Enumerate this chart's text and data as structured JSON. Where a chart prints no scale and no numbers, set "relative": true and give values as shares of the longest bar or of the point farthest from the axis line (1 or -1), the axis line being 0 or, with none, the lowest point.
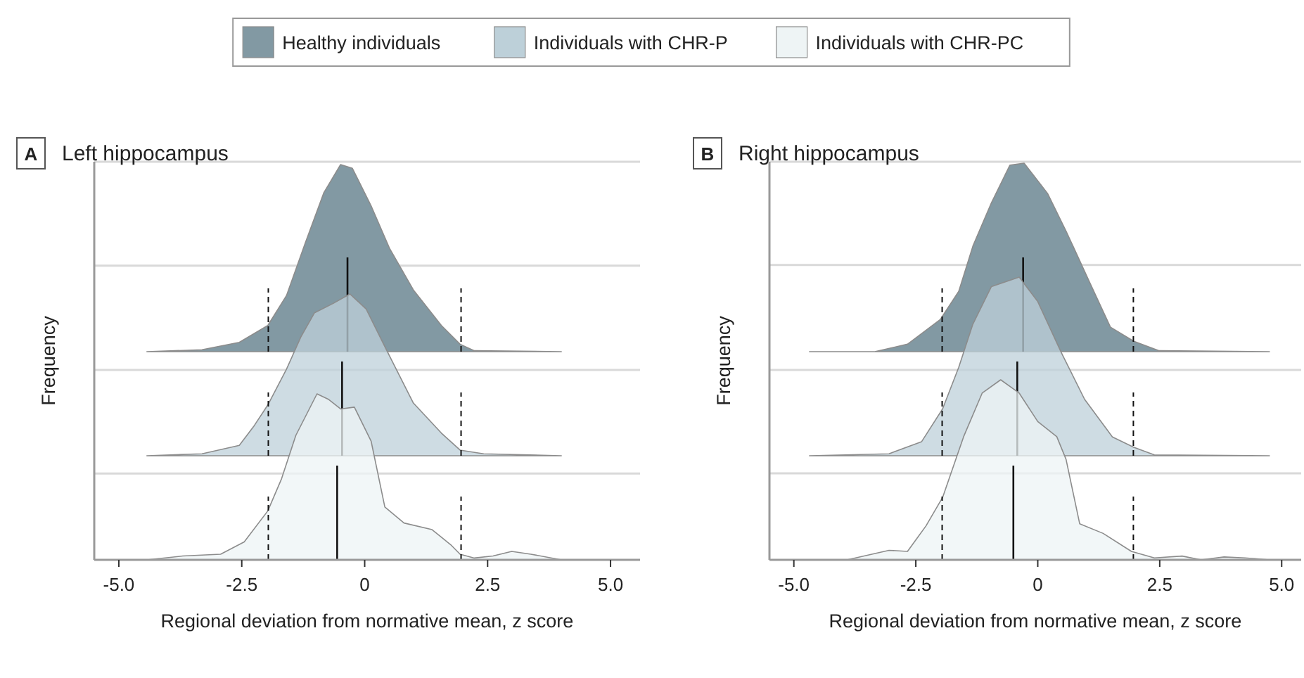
{
  "chart_data": [
    {
      "type": "area",
      "title": "Left hippocampus",
      "annotations": [
        "A"
      ],
      "relative": true,
      "legend": "top",
      "tick_labels": false,
      "xlim": [
        -5.5,
        5.6
      ],
      "ref_lines": [
        {
          "axis": "x",
          "value": -1.96,
          "line_style": "dashed"
        },
        {
          "axis": "x",
          "value": 1.96,
          "line_style": "dashed"
        },
        {
          "axis": "x",
          "value": -0.35,
          "line_style": "solid"
        },
        {
          "axis": "y",
          "value": 0.46,
          "color": "#d9d9d9",
          "line_style": "solid"
        }
      ],
      "series": [
        {
          "name": "Healthy individuals",
          "color": "#8299a3",
          "x": [
            -4.43,
            -3.31,
            -2.55,
            -1.97,
            -1.59,
            -1.21,
            -0.83,
            -0.49,
            -0.25,
            0.13,
            0.51,
            0.99,
            1.56,
            1.94,
            2.23,
            4.0
          ],
          "values": [
            0,
            0.01,
            0.05,
            0.14,
            0.3,
            0.58,
            0.85,
            1.0,
            0.98,
            0.78,
            0.55,
            0.33,
            0.14,
            0.04,
            0.005,
            0
          ]
        }
      ]
    },
    {
      "type": "area",
      "ylabel": "Frequency",
      "relative": true,
      "legend": "top",
      "tick_labels": false,
      "xlim": [
        -5.5,
        5.6
      ],
      "ref_lines": [
        {
          "axis": "x",
          "value": -1.96,
          "line_style": "dashed"
        },
        {
          "axis": "x",
          "value": 1.96,
          "line_style": "dashed"
        },
        {
          "axis": "x",
          "value": -0.46,
          "line_style": "solid"
        },
        {
          "axis": "y",
          "value": 0.53,
          "color": "#d9d9d9",
          "line_style": "solid"
        }
      ],
      "series": [
        {
          "name": "Individuals with CHR-P",
          "color": "#bdd0d9",
          "x": [
            -4.43,
            -3.31,
            -2.55,
            -2.26,
            -1.97,
            -1.59,
            -1.3,
            -1.02,
            -0.64,
            -0.3,
            0.03,
            0.41,
            0.99,
            1.56,
            1.94,
            2.42,
            4.0
          ],
          "values": [
            0,
            0.012,
            0.064,
            0.18,
            0.314,
            0.535,
            0.733,
            0.884,
            0.942,
            1.0,
            0.907,
            0.674,
            0.326,
            0.14,
            0.035,
            0.012,
            0
          ]
        }
      ]
    },
    {
      "type": "area",
      "xlabel": "Regional deviation from normative mean, z score",
      "relative": true,
      "legend": "top",
      "tick_labels": "x",
      "xlim": [
        -5.5,
        5.6
      ],
      "xticks": [
        {
          "value": -5,
          "label": "-5.0"
        },
        {
          "value": -2.5,
          "label": "-2.5"
        },
        {
          "value": 0,
          "label": "0"
        },
        {
          "value": 2.5,
          "label": "2.5"
        },
        {
          "value": 5,
          "label": "5.0"
        }
      ],
      "ref_lines": [
        {
          "axis": "x",
          "value": -1.96,
          "line_style": "dashed"
        },
        {
          "axis": "x",
          "value": 1.96,
          "line_style": "dashed"
        },
        {
          "axis": "x",
          "value": -0.56,
          "line_style": "solid"
        },
        {
          "axis": "y",
          "value": 0.52,
          "color": "#d9d9d9",
          "line_style": "solid"
        }
      ],
      "series": [
        {
          "name": "Individuals with CHR-PC",
          "color": "#eef4f5",
          "x": [
            -4.43,
            -3.7,
            -2.93,
            -2.45,
            -1.97,
            -1.69,
            -1.4,
            -0.97,
            -0.73,
            -0.49,
            -0.21,
            0.13,
            0.41,
            0.8,
            1.37,
            1.75,
            1.94,
            2.23,
            2.61,
            2.99,
            3.38,
            4.0
          ],
          "values": [
            0,
            0.023,
            0.034,
            0.108,
            0.295,
            0.489,
            0.75,
            1.0,
            0.966,
            0.909,
            0.92,
            0.716,
            0.318,
            0.222,
            0.182,
            0.091,
            0.034,
            0.011,
            0.023,
            0.051,
            0.034,
            0
          ]
        }
      ]
    },
    {
      "type": "area",
      "title": "Right hippocampus",
      "annotations": [
        "B"
      ],
      "relative": true,
      "tick_labels": false,
      "xlim": [
        -5.5,
        5.4
      ],
      "ref_lines": [
        {
          "axis": "x",
          "value": -1.96,
          "line_style": "dashed"
        },
        {
          "axis": "x",
          "value": 1.96,
          "line_style": "dashed"
        },
        {
          "axis": "x",
          "value": -0.3,
          "line_style": "solid"
        },
        {
          "axis": "y",
          "value": 0.46,
          "color": "#d9d9d9",
          "line_style": "solid"
        }
      ],
      "series": [
        {
          "color": "#8299a3",
          "x": [
            -4.68,
            -3.34,
            -2.67,
            -2.0,
            -1.62,
            -1.33,
            -0.95,
            -0.57,
            -0.28,
            0.2,
            0.58,
            1.06,
            1.49,
            1.97,
            2.49,
            4.75
          ],
          "values": [
            0,
            0,
            0.04,
            0.17,
            0.32,
            0.56,
            0.79,
            0.99,
            1.0,
            0.84,
            0.64,
            0.37,
            0.13,
            0.055,
            0.005,
            0
          ]
        }
      ]
    },
    {
      "type": "area",
      "ylabel": "Frequency",
      "relative": true,
      "tick_labels": false,
      "xlim": [
        -5.5,
        5.4
      ],
      "ref_lines": [
        {
          "axis": "x",
          "value": -1.96,
          "line_style": "dashed"
        },
        {
          "axis": "x",
          "value": 1.96,
          "line_style": "dashed"
        },
        {
          "axis": "x",
          "value": -0.42,
          "line_style": "solid"
        },
        {
          "axis": "y",
          "value": 0.48,
          "color": "#d9d9d9",
          "line_style": "solid"
        }
      ],
      "series": [
        {
          "color": "#bdd0d9",
          "x": [
            -4.68,
            -3.05,
            -2.38,
            -1.95,
            -1.62,
            -1.33,
            -0.95,
            -0.38,
            0.0,
            0.48,
            0.96,
            1.53,
            1.97,
            2.39,
            4.75
          ],
          "values": [
            0,
            0.011,
            0.079,
            0.263,
            0.495,
            0.737,
            0.947,
            1.0,
            0.863,
            0.579,
            0.316,
            0.105,
            0.047,
            0.005,
            0
          ]
        }
      ]
    },
    {
      "type": "area",
      "xlabel": "Regional deviation from normative mean, z score",
      "relative": true,
      "tick_labels": "x",
      "xlim": [
        -5.5,
        5.4
      ],
      "xticks": [
        {
          "value": -5,
          "label": "-5.0"
        },
        {
          "value": -2.5,
          "label": "-2.5"
        },
        {
          "value": 0,
          "label": "0"
        },
        {
          "value": 2.5,
          "label": "2.5"
        },
        {
          "value": 5,
          "label": "5.0"
        }
      ],
      "ref_lines": [
        {
          "axis": "x",
          "value": -1.96,
          "line_style": "dashed"
        },
        {
          "axis": "x",
          "value": 1.96,
          "line_style": "dashed"
        },
        {
          "axis": "x",
          "value": -0.5,
          "line_style": "solid"
        },
        {
          "axis": "y",
          "value": 0.48,
          "color": "#d9d9d9",
          "line_style": "solid"
        }
      ],
      "series": [
        {
          "color": "#eef4f5",
          "x": [
            -4.68,
            -3.91,
            -3.05,
            -2.67,
            -2.29,
            -1.95,
            -1.52,
            -1.14,
            -0.76,
            -0.38,
            0.0,
            0.39,
            0.58,
            0.86,
            1.34,
            1.92,
            2.39,
            2.96,
            3.35,
            3.82,
            4.25,
            4.75
          ],
          "values": [
            0,
            0,
            0.053,
            0.047,
            0.189,
            0.347,
            0.684,
            0.926,
            1.0,
            0.926,
            0.768,
            0.684,
            0.558,
            0.2,
            0.147,
            0.047,
            0.011,
            0.021,
            0,
            0.016,
            0.011,
            0
          ]
        }
      ]
    }
  ]
}
